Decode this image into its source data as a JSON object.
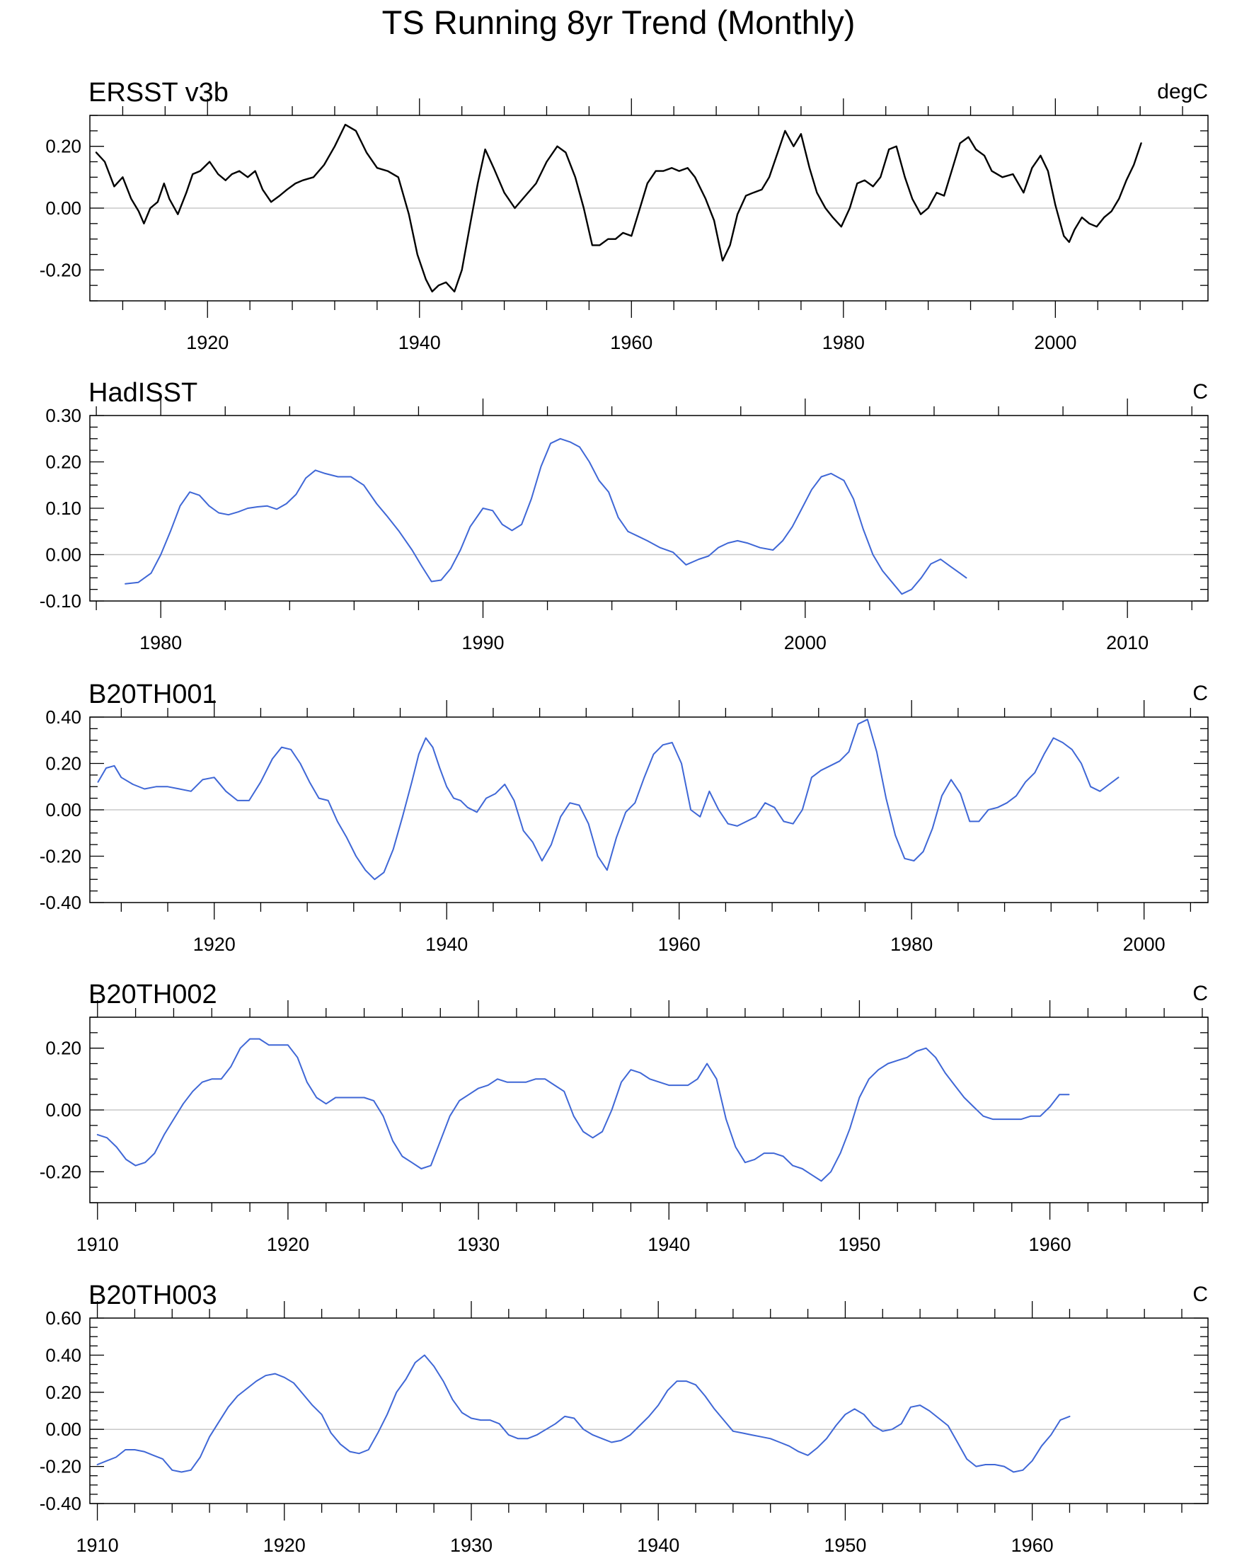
{
  "title": "TS Running 8yr Trend (Monthly)",
  "colors": {
    "observed": "#000000",
    "model": "#3f67d6",
    "zero_line": "#c8c8c8",
    "frame": "#000000"
  },
  "chart_data": [
    {
      "type": "line",
      "title": "ERSST v3b",
      "units": "degC",
      "line_color": "#000000",
      "xlim": [
        1908.9,
        2014.4
      ],
      "ylim": [
        -0.3,
        0.3
      ],
      "yticks": [
        -0.2,
        0.0,
        0.2
      ],
      "ytick_labels": [
        "-0.20",
        "0.00",
        "0.20"
      ],
      "xticks": [
        1920,
        1940,
        1960,
        1980,
        2000
      ],
      "xtick_labels": [
        "1920",
        "1940",
        "1960",
        "1980",
        "2000"
      ],
      "x": [
        1909.5,
        1910.3,
        1911.2,
        1912.0,
        1912.8,
        1913.5,
        1914.0,
        1914.6,
        1915.3,
        1915.9,
        1916.4,
        1917.2,
        1918.0,
        1918.6,
        1919.3,
        1920.2,
        1921.0,
        1921.7,
        1922.3,
        1923.0,
        1923.8,
        1924.5,
        1925.2,
        1926.0,
        1926.8,
        1927.5,
        1928.3,
        1929.0,
        1930.0,
        1931.0,
        1932.0,
        1933.0,
        1934.0,
        1935.0,
        1936.0,
        1937.0,
        1938.0,
        1939.0,
        1939.8,
        1940.6,
        1941.2,
        1941.8,
        1942.5,
        1943.3,
        1944.0,
        1944.8,
        1945.5,
        1946.2,
        1947.0,
        1948.0,
        1949.0,
        1950.0,
        1951.0,
        1952.0,
        1953.0,
        1953.8,
        1954.7,
        1955.5,
        1956.3,
        1957.0,
        1957.8,
        1958.5,
        1959.2,
        1960.0,
        1960.8,
        1961.5,
        1962.3,
        1963.0,
        1963.8,
        1964.5,
        1965.3,
        1966.0,
        1967.0,
        1967.8,
        1968.6,
        1969.3,
        1970.0,
        1970.8,
        1971.5,
        1972.3,
        1973.0,
        1973.8,
        1974.5,
        1975.3,
        1976.0,
        1976.8,
        1977.5,
        1978.3,
        1979.0,
        1979.8,
        1980.6,
        1981.3,
        1982.0,
        1982.8,
        1983.5,
        1984.3,
        1985.0,
        1985.8,
        1986.5,
        1987.3,
        1988.0,
        1988.8,
        1989.5,
        1990.3,
        1991.0,
        1991.8,
        1992.5,
        1993.3,
        1994.0,
        1995.0,
        1996.0,
        1997.0,
        1997.8,
        1998.6,
        1999.3,
        2000.0,
        2000.8,
        2001.3,
        2001.8,
        2002.5,
        2003.2,
        2003.9,
        2004.6,
        2005.3,
        2006.0,
        2006.7,
        2007.4,
        2008.1
      ],
      "y": [
        0.18,
        0.15,
        0.07,
        0.1,
        0.03,
        -0.01,
        -0.05,
        0.0,
        0.02,
        0.08,
        0.03,
        -0.02,
        0.05,
        0.11,
        0.12,
        0.15,
        0.11,
        0.09,
        0.11,
        0.12,
        0.1,
        0.12,
        0.06,
        0.02,
        0.04,
        0.06,
        0.08,
        0.09,
        0.1,
        0.14,
        0.2,
        0.27,
        0.25,
        0.18,
        0.13,
        0.12,
        0.1,
        -0.02,
        -0.15,
        -0.23,
        -0.27,
        -0.25,
        -0.24,
        -0.27,
        -0.2,
        -0.05,
        0.08,
        0.19,
        0.13,
        0.05,
        0.0,
        0.04,
        0.08,
        0.15,
        0.2,
        0.18,
        0.1,
        0.0,
        -0.12,
        -0.12,
        -0.1,
        -0.1,
        -0.08,
        -0.09,
        0.0,
        0.08,
        0.12,
        0.12,
        0.13,
        0.12,
        0.13,
        0.1,
        0.03,
        -0.04,
        -0.17,
        -0.12,
        -0.02,
        0.04,
        0.05,
        0.06,
        0.1,
        0.18,
        0.25,
        0.2,
        0.24,
        0.13,
        0.05,
        0.0,
        -0.03,
        -0.06,
        0.0,
        0.08,
        0.09,
        0.07,
        0.1,
        0.19,
        0.2,
        0.1,
        0.03,
        -0.02,
        0.0,
        0.05,
        0.04,
        0.13,
        0.21,
        0.23,
        0.19,
        0.17,
        0.12,
        0.1,
        0.11,
        0.05,
        0.13,
        0.17,
        0.12,
        0.01,
        -0.09,
        -0.11,
        -0.07,
        -0.03,
        -0.05,
        -0.06,
        -0.03,
        -0.01,
        0.03,
        0.09,
        0.14,
        0.21
      ]
    },
    {
      "type": "line",
      "title": "HadISST",
      "units": "C",
      "line_color": "#3f67d6",
      "xlim": [
        1977.8,
        2012.5
      ],
      "ylim": [
        -0.1,
        0.3
      ],
      "yticks": [
        -0.1,
        0.0,
        0.1,
        0.2,
        0.3
      ],
      "ytick_labels": [
        "-0.10",
        "0.00",
        "0.10",
        "0.20",
        "0.30"
      ],
      "xticks": [
        1980,
        1990,
        2000,
        2010
      ],
      "xtick_labels": [
        "1980",
        "1990",
        "2000",
        "2010"
      ],
      "x": [
        1978.9,
        1979.3,
        1979.7,
        1980.0,
        1980.3,
        1980.6,
        1980.9,
        1981.2,
        1981.5,
        1981.8,
        1982.1,
        1982.4,
        1982.7,
        1983.0,
        1983.3,
        1983.6,
        1983.9,
        1984.2,
        1984.5,
        1984.8,
        1985.1,
        1985.5,
        1985.9,
        1986.3,
        1986.7,
        1987.0,
        1987.4,
        1987.8,
        1988.1,
        1988.4,
        1988.7,
        1989.0,
        1989.3,
        1989.6,
        1990.0,
        1990.3,
        1990.6,
        1990.9,
        1991.2,
        1991.5,
        1991.8,
        1992.1,
        1992.4,
        1992.7,
        1993.0,
        1993.3,
        1993.6,
        1993.9,
        1994.2,
        1994.5,
        1994.8,
        1995.1,
        1995.5,
        1995.9,
        1996.3,
        1996.7,
        1997.0,
        1997.3,
        1997.6,
        1997.9,
        1998.2,
        1998.6,
        1999.0,
        1999.3,
        1999.6,
        1999.9,
        2000.2,
        2000.5,
        2000.8,
        2001.2,
        2001.5,
        2001.8,
        2002.1,
        2002.4,
        2002.7,
        2003.0,
        2003.3,
        2003.6,
        2003.9,
        2004.2,
        2004.5,
        2004.8,
        2005.0
      ],
      "y": [
        -0.063,
        -0.06,
        -0.04,
        0.0,
        0.05,
        0.105,
        0.135,
        0.128,
        0.105,
        0.09,
        0.086,
        0.092,
        0.1,
        0.103,
        0.105,
        0.098,
        0.11,
        0.13,
        0.165,
        0.182,
        0.175,
        0.168,
        0.168,
        0.15,
        0.11,
        0.085,
        0.05,
        0.01,
        -0.025,
        -0.058,
        -0.055,
        -0.03,
        0.01,
        0.06,
        0.1,
        0.095,
        0.065,
        0.052,
        0.065,
        0.12,
        0.19,
        0.24,
        0.25,
        0.243,
        0.232,
        0.2,
        0.16,
        0.135,
        0.08,
        0.05,
        0.04,
        0.03,
        0.015,
        0.005,
        -0.022,
        -0.01,
        -0.003,
        0.015,
        0.025,
        0.03,
        0.025,
        0.015,
        0.01,
        0.03,
        0.06,
        0.1,
        0.14,
        0.168,
        0.175,
        0.16,
        0.12,
        0.055,
        0.0,
        -0.035,
        -0.06,
        -0.085,
        -0.075,
        -0.05,
        -0.02,
        -0.01,
        -0.025,
        -0.04,
        -0.05
      ]
    },
    {
      "type": "line",
      "title": "B20TH001",
      "units": "C",
      "line_color": "#3f67d6",
      "xlim": [
        1909.3,
        2005.5
      ],
      "ylim": [
        -0.4,
        0.4
      ],
      "yticks": [
        -0.4,
        -0.2,
        0.0,
        0.2,
        0.4
      ],
      "ytick_labels": [
        "-0.40",
        "-0.20",
        "0.00",
        "0.20",
        "0.40"
      ],
      "xticks": [
        1920,
        1940,
        1960,
        1980,
        2000
      ],
      "xtick_labels": [
        "1920",
        "1940",
        "1960",
        "1980",
        "2000"
      ],
      "x": [
        1910.0,
        1910.7,
        1911.4,
        1912.0,
        1913.0,
        1914.0,
        1915.0,
        1916.0,
        1917.0,
        1918.0,
        1919.0,
        1920.0,
        1921.0,
        1922.0,
        1923.0,
        1924.0,
        1925.0,
        1925.8,
        1926.6,
        1927.4,
        1928.2,
        1929.0,
        1929.8,
        1930.6,
        1931.4,
        1932.2,
        1933.0,
        1933.8,
        1934.6,
        1935.4,
        1936.2,
        1937.0,
        1937.6,
        1938.2,
        1938.8,
        1939.4,
        1940.0,
        1940.6,
        1941.2,
        1941.8,
        1942.6,
        1943.4,
        1944.2,
        1945.0,
        1945.8,
        1946.6,
        1947.4,
        1948.2,
        1949.0,
        1949.8,
        1950.6,
        1951.4,
        1952.2,
        1953.0,
        1953.8,
        1954.6,
        1955.4,
        1956.2,
        1957.0,
        1957.8,
        1958.6,
        1959.4,
        1960.2,
        1961.0,
        1961.8,
        1962.6,
        1963.4,
        1964.2,
        1965.0,
        1965.8,
        1966.6,
        1967.4,
        1968.2,
        1969.0,
        1969.8,
        1970.6,
        1971.4,
        1972.2,
        1973.0,
        1973.8,
        1974.6,
        1975.4,
        1976.2,
        1977.0,
        1977.8,
        1978.6,
        1979.4,
        1980.2,
        1981.0,
        1981.8,
        1982.6,
        1983.4,
        1984.2,
        1985.0,
        1985.8,
        1986.6,
        1987.4,
        1988.2,
        1989.0,
        1989.8,
        1990.6,
        1991.4,
        1992.2,
        1993.0,
        1993.8,
        1994.6,
        1995.4,
        1996.2,
        1997.0,
        1997.8
      ],
      "y": [
        0.12,
        0.18,
        0.19,
        0.14,
        0.11,
        0.09,
        0.1,
        0.1,
        0.09,
        0.08,
        0.13,
        0.14,
        0.08,
        0.04,
        0.04,
        0.12,
        0.22,
        0.27,
        0.26,
        0.2,
        0.12,
        0.05,
        0.04,
        -0.05,
        -0.12,
        -0.2,
        -0.26,
        -0.3,
        -0.27,
        -0.17,
        -0.03,
        0.12,
        0.24,
        0.31,
        0.27,
        0.18,
        0.1,
        0.05,
        0.04,
        0.01,
        -0.01,
        0.05,
        0.07,
        0.11,
        0.04,
        -0.09,
        -0.14,
        -0.22,
        -0.15,
        -0.03,
        0.03,
        0.02,
        -0.06,
        -0.2,
        -0.26,
        -0.12,
        -0.01,
        0.03,
        0.14,
        0.24,
        0.28,
        0.29,
        0.2,
        0.0,
        -0.03,
        0.08,
        0.0,
        -0.06,
        -0.07,
        -0.05,
        -0.03,
        0.03,
        0.01,
        -0.05,
        -0.06,
        0.0,
        0.14,
        0.17,
        0.19,
        0.21,
        0.25,
        0.37,
        0.39,
        0.25,
        0.05,
        -0.11,
        -0.21,
        -0.22,
        -0.18,
        -0.08,
        0.06,
        0.13,
        0.07,
        -0.05,
        -0.05,
        0.0,
        0.01,
        0.03,
        0.06,
        0.12,
        0.16,
        0.24,
        0.31,
        0.29,
        0.26,
        0.2,
        0.1,
        0.08,
        0.11,
        0.14
      ]
    },
    {
      "type": "line",
      "title": "B20TH002",
      "units": "C",
      "line_color": "#3f67d6",
      "xlim": [
        1909.6,
        1968.3
      ],
      "ylim": [
        -0.3,
        0.3
      ],
      "yticks": [
        -0.2,
        0.0,
        0.2
      ],
      "ytick_labels": [
        "-0.20",
        "0.00",
        "0.20"
      ],
      "xticks": [
        1910,
        1920,
        1930,
        1940,
        1950,
        1960
      ],
      "xtick_labels": [
        "1910",
        "1920",
        "1930",
        "1940",
        "1950",
        "1960"
      ],
      "x": [
        1910.0,
        1910.5,
        1911.0,
        1911.5,
        1912.0,
        1912.5,
        1913.0,
        1913.5,
        1914.0,
        1914.5,
        1915.0,
        1915.5,
        1916.0,
        1916.5,
        1917.0,
        1917.5,
        1918.0,
        1918.5,
        1919.0,
        1919.5,
        1920.0,
        1920.5,
        1921.0,
        1921.5,
        1922.0,
        1922.5,
        1923.0,
        1923.5,
        1924.0,
        1924.5,
        1925.0,
        1925.5,
        1926.0,
        1926.5,
        1927.0,
        1927.5,
        1928.0,
        1928.5,
        1929.0,
        1929.5,
        1930.0,
        1930.5,
        1931.0,
        1931.5,
        1932.0,
        1932.5,
        1933.0,
        1933.5,
        1934.0,
        1934.5,
        1935.0,
        1935.5,
        1936.0,
        1936.5,
        1937.0,
        1937.5,
        1938.0,
        1938.5,
        1939.0,
        1939.5,
        1940.0,
        1940.5,
        1941.0,
        1941.5,
        1942.0,
        1942.5,
        1943.0,
        1943.5,
        1944.0,
        1944.5,
        1945.0,
        1945.5,
        1946.0,
        1946.5,
        1947.0,
        1947.5,
        1948.0,
        1948.5,
        1949.0,
        1949.5,
        1950.0,
        1950.5,
        1951.0,
        1951.5,
        1952.0,
        1952.5,
        1953.0,
        1953.5,
        1954.0,
        1954.5,
        1955.0,
        1955.5,
        1956.0,
        1956.5,
        1957.0,
        1957.5,
        1958.0,
        1958.5,
        1959.0,
        1959.5,
        1960.0,
        1960.5,
        1961.0
      ],
      "y": [
        -0.08,
        -0.09,
        -0.12,
        -0.16,
        -0.18,
        -0.17,
        -0.14,
        -0.08,
        -0.03,
        0.02,
        0.06,
        0.09,
        0.1,
        0.1,
        0.14,
        0.2,
        0.23,
        0.23,
        0.21,
        0.21,
        0.21,
        0.17,
        0.09,
        0.04,
        0.02,
        0.04,
        0.04,
        0.04,
        0.04,
        0.03,
        -0.02,
        -0.1,
        -0.15,
        -0.17,
        -0.19,
        -0.18,
        -0.1,
        -0.02,
        0.03,
        0.05,
        0.07,
        0.08,
        0.1,
        0.09,
        0.09,
        0.09,
        0.1,
        0.1,
        0.08,
        0.06,
        -0.02,
        -0.07,
        -0.09,
        -0.07,
        0.0,
        0.09,
        0.13,
        0.12,
        0.1,
        0.09,
        0.08,
        0.08,
        0.08,
        0.1,
        0.15,
        0.1,
        -0.03,
        -0.12,
        -0.17,
        -0.16,
        -0.14,
        -0.14,
        -0.15,
        -0.18,
        -0.19,
        -0.21,
        -0.23,
        -0.2,
        -0.14,
        -0.06,
        0.04,
        0.1,
        0.13,
        0.15,
        0.16,
        0.17,
        0.19,
        0.2,
        0.17,
        0.12,
        0.08,
        0.04,
        0.01,
        -0.02,
        -0.03,
        -0.03,
        -0.03,
        -0.03,
        -0.02,
        -0.02,
        0.01,
        0.05,
        0.05
      ]
    },
    {
      "type": "line",
      "title": "B20TH003",
      "units": "C",
      "line_color": "#3f67d6",
      "xlim": [
        1909.6,
        1969.4
      ],
      "ylim": [
        -0.4,
        0.6
      ],
      "yticks": [
        -0.4,
        -0.2,
        0.0,
        0.2,
        0.4,
        0.6
      ],
      "ytick_labels": [
        "-0.40",
        "-0.20",
        "0.00",
        "0.20",
        "0.40",
        "0.60"
      ],
      "xticks": [
        1910,
        1920,
        1930,
        1940,
        1950,
        1960
      ],
      "xtick_labels": [
        "1910",
        "1920",
        "1930",
        "1940",
        "1950",
        "1960"
      ],
      "x": [
        1910.0,
        1910.5,
        1911.0,
        1911.5,
        1912.0,
        1912.5,
        1913.0,
        1913.5,
        1914.0,
        1914.5,
        1915.0,
        1915.5,
        1916.0,
        1916.5,
        1917.0,
        1917.5,
        1918.0,
        1918.5,
        1919.0,
        1919.5,
        1920.0,
        1920.5,
        1921.0,
        1921.5,
        1922.0,
        1922.5,
        1923.0,
        1923.5,
        1924.0,
        1924.5,
        1925.0,
        1925.5,
        1926.0,
        1926.5,
        1927.0,
        1927.5,
        1928.0,
        1928.5,
        1929.0,
        1929.5,
        1930.0,
        1930.5,
        1931.0,
        1931.5,
        1932.0,
        1932.5,
        1933.0,
        1933.5,
        1934.0,
        1934.5,
        1935.0,
        1935.5,
        1936.0,
        1936.5,
        1937.0,
        1937.5,
        1938.0,
        1938.5,
        1939.0,
        1939.5,
        1940.0,
        1940.5,
        1941.0,
        1941.5,
        1942.0,
        1942.5,
        1943.0,
        1943.5,
        1944.0,
        1944.5,
        1945.0,
        1945.5,
        1946.0,
        1946.5,
        1947.0,
        1947.5,
        1948.0,
        1948.5,
        1949.0,
        1949.5,
        1950.0,
        1950.5,
        1951.0,
        1951.5,
        1952.0,
        1952.5,
        1953.0,
        1953.5,
        1954.0,
        1954.5,
        1955.0,
        1955.5,
        1956.0,
        1956.5,
        1957.0,
        1957.5,
        1958.0,
        1958.5,
        1959.0,
        1959.5,
        1960.0,
        1960.5,
        1961.0,
        1961.5,
        1962.0
      ],
      "y": [
        -0.19,
        -0.17,
        -0.15,
        -0.11,
        -0.11,
        -0.12,
        -0.14,
        -0.16,
        -0.22,
        -0.23,
        -0.22,
        -0.15,
        -0.04,
        0.04,
        0.12,
        0.18,
        0.22,
        0.26,
        0.29,
        0.3,
        0.28,
        0.25,
        0.19,
        0.13,
        0.08,
        -0.02,
        -0.08,
        -0.12,
        -0.13,
        -0.11,
        -0.02,
        0.08,
        0.2,
        0.27,
        0.36,
        0.4,
        0.34,
        0.26,
        0.16,
        0.09,
        0.06,
        0.05,
        0.05,
        0.03,
        -0.03,
        -0.05,
        -0.05,
        -0.03,
        0.0,
        0.03,
        0.07,
        0.06,
        0.0,
        -0.03,
        -0.05,
        -0.07,
        -0.06,
        -0.03,
        0.02,
        0.07,
        0.13,
        0.21,
        0.26,
        0.26,
        0.24,
        0.18,
        0.11,
        0.05,
        -0.01,
        -0.02,
        -0.03,
        -0.04,
        -0.05,
        -0.07,
        -0.09,
        -0.12,
        -0.14,
        -0.1,
        -0.05,
        0.02,
        0.08,
        0.11,
        0.08,
        0.02,
        -0.01,
        0.0,
        0.03,
        0.12,
        0.13,
        0.1,
        0.06,
        0.02,
        -0.07,
        -0.16,
        -0.2,
        -0.19,
        -0.19,
        -0.2,
        -0.23,
        -0.22,
        -0.17,
        -0.09,
        -0.03,
        0.05,
        0.07
      ]
    }
  ]
}
